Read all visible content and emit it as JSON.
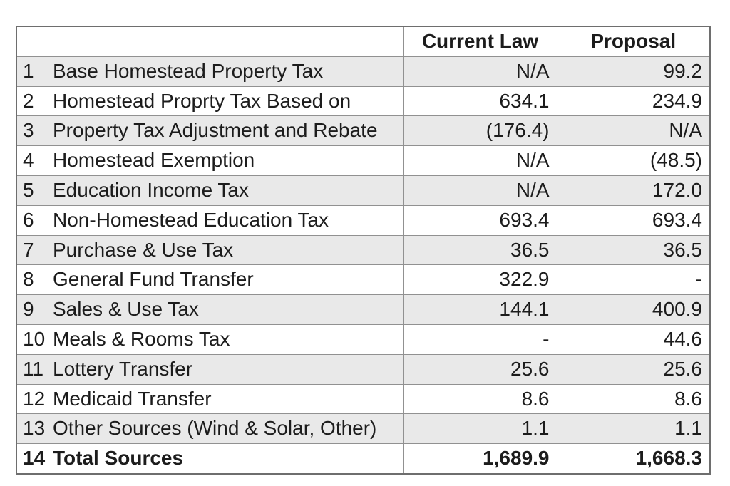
{
  "chart_data": {
    "type": "table",
    "title": "",
    "columns": [
      "",
      "Current Law",
      "Proposal"
    ],
    "rows": [
      {
        "num": "1",
        "label": "Base Homestead Property Tax",
        "current_law": "N/A",
        "proposal": "99.2"
      },
      {
        "num": "2",
        "label": "Homestead Proprty Tax Based on",
        "current_law": "634.1",
        "proposal": "234.9"
      },
      {
        "num": "3",
        "label": "Property Tax Adjustment and Rebate",
        "current_law": "(176.4)",
        "proposal": "N/A"
      },
      {
        "num": "4",
        "label": "Homestead Exemption",
        "current_law": "N/A",
        "proposal": "(48.5)"
      },
      {
        "num": "5",
        "label": "Education Income Tax",
        "current_law": "N/A",
        "proposal": "172.0"
      },
      {
        "num": "6",
        "label": "Non-Homestead Education Tax",
        "current_law": "693.4",
        "proposal": "693.4"
      },
      {
        "num": "7",
        "label": "Purchase & Use Tax",
        "current_law": "36.5",
        "proposal": "36.5"
      },
      {
        "num": "8",
        "label": "General Fund Transfer",
        "current_law": "322.9",
        "proposal": "-"
      },
      {
        "num": "9",
        "label": "Sales & Use Tax",
        "current_law": "144.1",
        "proposal": "400.9"
      },
      {
        "num": "10",
        "label": "Meals & Rooms Tax",
        "current_law": "-",
        "proposal": "44.6"
      },
      {
        "num": "11",
        "label": "Lottery Transfer",
        "current_law": "25.6",
        "proposal": "25.6"
      },
      {
        "num": "12",
        "label": "Medicaid Transfer",
        "current_law": "8.6",
        "proposal": "8.6"
      },
      {
        "num": "13",
        "label": "Other Sources (Wind & Solar, Other)",
        "current_law": "1.1",
        "proposal": "1.1"
      },
      {
        "num": "14",
        "label": "Total Sources",
        "current_law": "1,689.9",
        "proposal": "1,668.3"
      }
    ],
    "layout": {
      "shaded_row_numbers": [
        1,
        3,
        5,
        7,
        9,
        11,
        13
      ],
      "total_row_number": 14,
      "grid": true
    },
    "colors": {
      "row_shade": "#e9e9e9",
      "inner_border": "#919191",
      "outer_border": "#6e6e6e",
      "text": "#1c1c1c",
      "background": "#ffffff"
    }
  }
}
